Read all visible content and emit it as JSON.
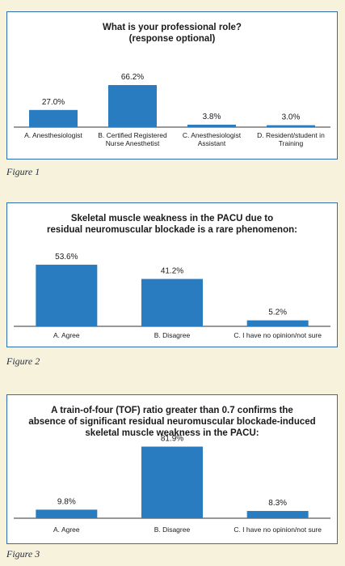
{
  "colors": {
    "bar": "#2a7cc0",
    "panel_border": "#2f6fb0",
    "axis": "#333333"
  },
  "figures": [
    {
      "caption": "Figure 1"
    },
    {
      "caption": "Figure 2"
    },
    {
      "caption": "Figure 3"
    }
  ],
  "chart_data": [
    {
      "type": "bar",
      "title_lines": [
        "What is your professional role?",
        "(response optional)"
      ],
      "categories": [
        [
          "A. Anesthesiologist"
        ],
        [
          "B. Certified Registered",
          "Nurse Anesthetist"
        ],
        [
          "C. Anesthesiologist",
          "Assistant"
        ],
        [
          "D. Resident/student in",
          "Training"
        ]
      ],
      "values": [
        27.0,
        66.2,
        3.8,
        3.0
      ],
      "value_labels": [
        "27.0%",
        "66.2%",
        "3.8%",
        "3.0%"
      ],
      "ylim": [
        0,
        100
      ],
      "grid": false,
      "legend": "none"
    },
    {
      "type": "bar",
      "title_lines": [
        "Skeletal muscle weakness in the PACU due to",
        "residual neuromuscular blockade is a rare phenomenon:"
      ],
      "categories": [
        [
          "A. Agree"
        ],
        [
          "B. Disagree"
        ],
        [
          "C. I have no opinion/not sure"
        ]
      ],
      "values": [
        53.6,
        41.2,
        5.2
      ],
      "value_labels": [
        "53.6%",
        "41.2%",
        "5.2%"
      ],
      "ylim": [
        0,
        100
      ],
      "grid": false,
      "legend": "none"
    },
    {
      "type": "bar",
      "title_lines": [
        "A train-of-four (TOF) ratio greater than 0.7 confirms the",
        "absence of significant residual neuromuscular blockade-induced",
        "skeletal muscle weakness in the PACU:"
      ],
      "categories": [
        [
          "A. Agree"
        ],
        [
          "B. Disagree"
        ],
        [
          "C. I have no opinion/not sure"
        ]
      ],
      "values": [
        9.8,
        81.9,
        8.3
      ],
      "value_labels": [
        "9.8%",
        "81.9%",
        "8.3%"
      ],
      "ylim": [
        0,
        100
      ],
      "grid": false,
      "legend": "none"
    }
  ]
}
